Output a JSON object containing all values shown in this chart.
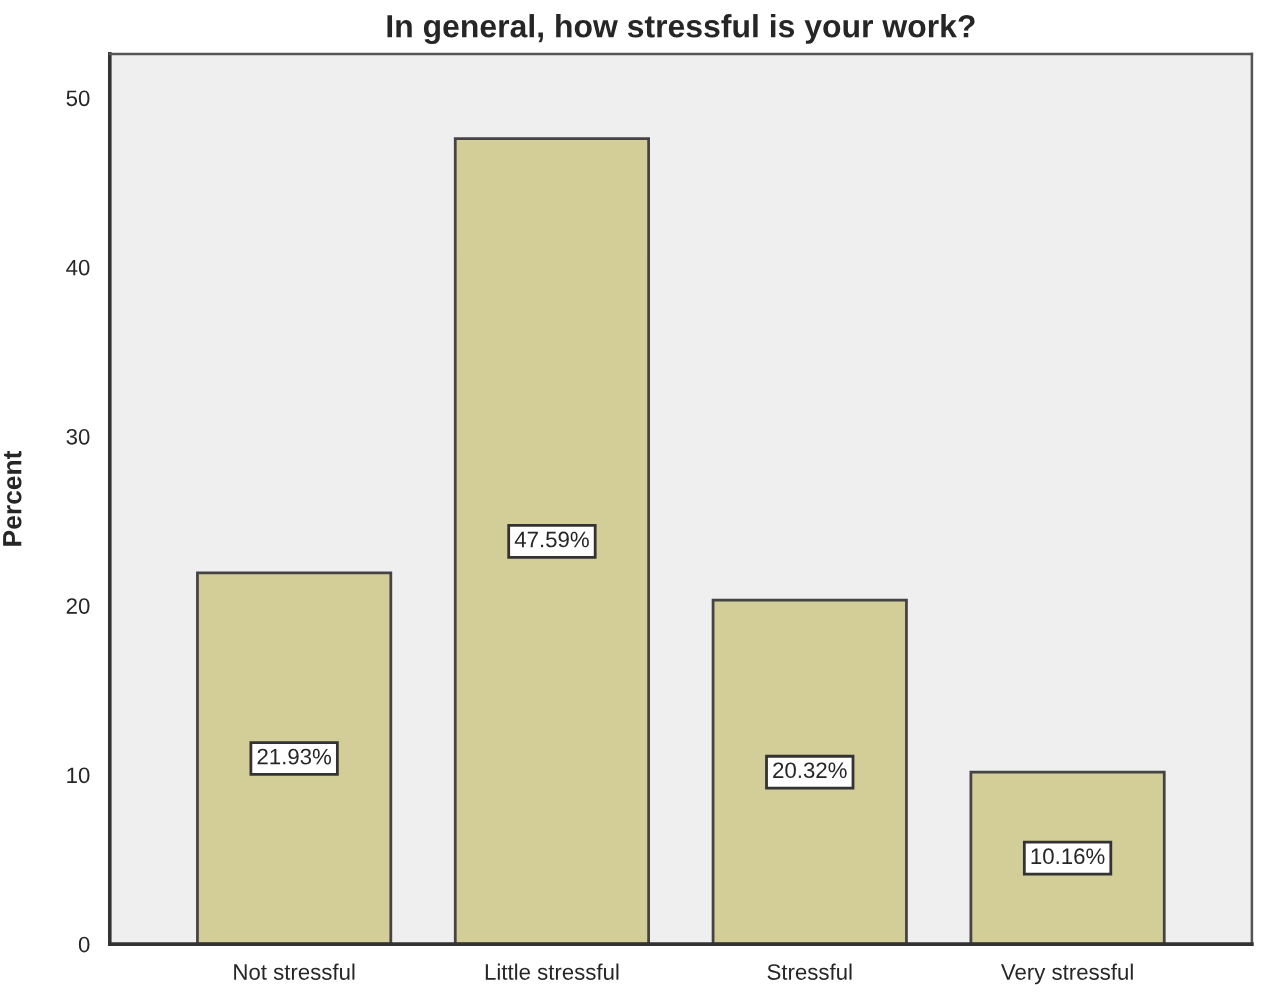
{
  "chart_data": {
    "type": "bar",
    "title": "In general, how stressful is your work?",
    "ylabel": "Percent",
    "categories": [
      "Not stressful",
      "Little stressful",
      "Stressful",
      "Very stressful"
    ],
    "values": [
      21.93,
      47.59,
      20.32,
      10.16
    ],
    "value_labels": [
      "21.93%",
      "47.59%",
      "20.32%",
      "10.16%"
    ],
    "color": "#d3ce97",
    "ylim": [
      0,
      52.6
    ],
    "yticks": [
      0,
      10,
      20,
      30,
      40,
      50
    ]
  }
}
